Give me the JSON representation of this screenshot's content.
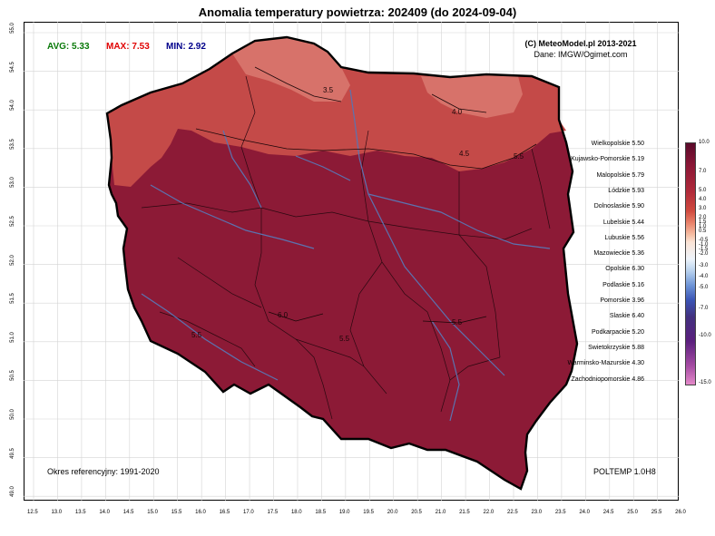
{
  "title": "Anomalia temperatury powietrza:  202409 (do 2024-09-04)",
  "stats": {
    "avg": "AVG: 5.33",
    "max": "MAX: 7.53",
    "min": "MIN: 2.92",
    "avg_color": "#0a7a0a",
    "max_color": "#e00000",
    "min_color": "#00008b"
  },
  "copyright": "(C) MeteoModel.pl 2013-2021",
  "source": "Dane: IMGW/Ogimet.com",
  "reference_period": "Okres referencyjny: 1991-2020",
  "model": "POLTEMP 1.0H8",
  "regions": [
    "Wielkopolskie 5.50",
    "Kujawsko-Pomorskie 5.19",
    "Malopolskie 5.79",
    "Lódzkie 5.93",
    "Dolnoslaskie 5.90",
    "Lubelskie 5.44",
    "Lubuskie 5.56",
    "Mazowieckie 5.36",
    "Opolskie 6.30",
    "Podlaskie 5.16",
    "Pomorskie 3.96",
    "Slaskie 6.40",
    "Podkarpackie 5.20",
    "Swietokrzyskie 5.88",
    "Warminsko-Mazurskie 4.30",
    "Zachodniopomorskie 4.86"
  ],
  "colorbar_ticks": [
    "10.0",
    "7.0",
    "5.0",
    "4.0",
    "3.0",
    "2.0",
    "1.5",
    "1.0",
    "0.5",
    "-0.5",
    "-1.0",
    "-1.5",
    "-2.0",
    "-3.0",
    "-4.0",
    "-5.0",
    "-7.0",
    "-10.0",
    "-15.0"
  ],
  "x_ticks": [
    "12.5",
    "13.0",
    "13.5",
    "14.0",
    "14.5",
    "15.0",
    "15.5",
    "16.0",
    "16.5",
    "17.0",
    "17.5",
    "18.0",
    "18.5",
    "19.0",
    "19.5",
    "20.0",
    "20.5",
    "21.0",
    "21.5",
    "22.0",
    "22.5",
    "23.0",
    "23.5",
    "24.0",
    "24.5",
    "25.0",
    "25.5",
    "26.0"
  ],
  "y_ticks": [
    "55.0",
    "54.5",
    "54.0",
    "53.5",
    "53.0",
    "52.5",
    "52.0",
    "51.5",
    "51.0",
    "50.5",
    "50.0",
    "49.5",
    "49.0"
  ],
  "contour_labels": [
    "3.5",
    "4.0",
    "4.5",
    "5.5",
    "6.0",
    "5.5",
    "5.5",
    "5.5"
  ],
  "colors": {
    "dark_fill": "#8c1a36",
    "mid_fill": "#c44a48",
    "light_fill": "#d7726a",
    "river": "#5b73b0",
    "border": "#000000"
  }
}
